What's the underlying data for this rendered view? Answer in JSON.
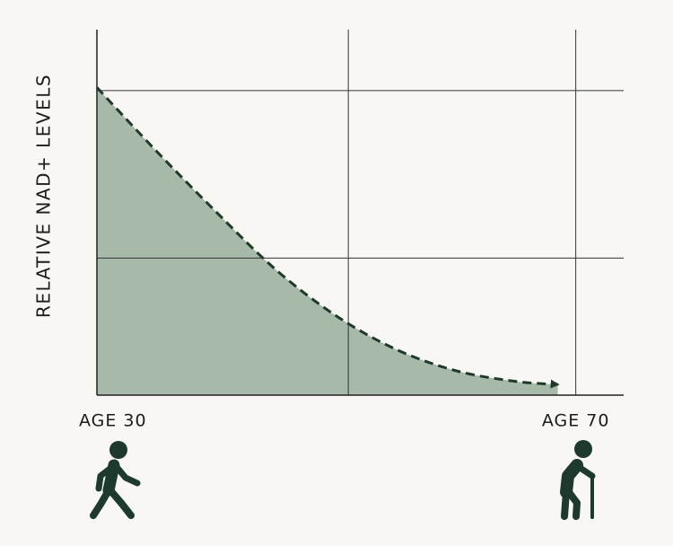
{
  "chart_data": {
    "type": "area",
    "y_label": "RELATIVE NAD+ LEVELS",
    "x": [
      30,
      35,
      40,
      45,
      50,
      55,
      60,
      65,
      68.5
    ],
    "series": [
      {
        "color": "#1f3a2c",
        "fill": "#a7b9a9",
        "values": [
          101,
          80,
          60,
          41,
          26,
          15,
          8,
          4.5,
          3.5
        ]
      }
    ],
    "xlim": [
      30,
      74
    ],
    "ylim": [
      0,
      120
    ],
    "xticks": [
      {
        "value": 30,
        "label": "AGE 30"
      },
      {
        "value": 70,
        "label": "AGE 70"
      }
    ],
    "xgrid": [
      51,
      70
    ],
    "ygrid": [
      45,
      100
    ],
    "grid": true,
    "line_style": "dashed"
  }
}
